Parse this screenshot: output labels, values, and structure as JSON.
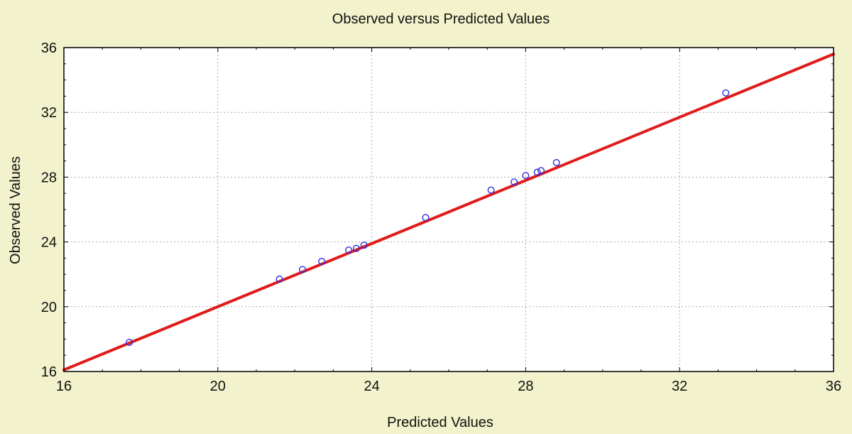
{
  "colors": {
    "background": "#F2F2CC",
    "plot_background": "#FFFFFF",
    "grid": "#A9A9A9",
    "points": "#2E2EE6",
    "fit_line": "#E01B1B",
    "axis": "#000000",
    "text": "#111111"
  },
  "chart_data": {
    "type": "scatter",
    "title": "Observed versus Predicted Values",
    "xlabel": "Predicted Values",
    "ylabel": "Observed Values",
    "xlim": [
      16,
      36
    ],
    "ylim": [
      16,
      36
    ],
    "xticks": [
      16,
      20,
      24,
      28,
      32,
      36
    ],
    "yticks": [
      16,
      20,
      24,
      28,
      32,
      36
    ],
    "grid": true,
    "points": {
      "x": [
        17.7,
        21.6,
        22.2,
        22.7,
        23.4,
        23.6,
        23.8,
        25.4,
        27.1,
        27.7,
        28.0,
        28.3,
        28.4,
        28.8,
        33.2
      ],
      "y": [
        17.8,
        21.7,
        22.3,
        22.8,
        23.5,
        23.6,
        23.8,
        25.5,
        27.2,
        27.7,
        28.1,
        28.3,
        28.4,
        28.9,
        33.2
      ]
    },
    "fit_line": {
      "x": [
        16,
        36
      ],
      "y": [
        16.1,
        35.6
      ]
    }
  }
}
